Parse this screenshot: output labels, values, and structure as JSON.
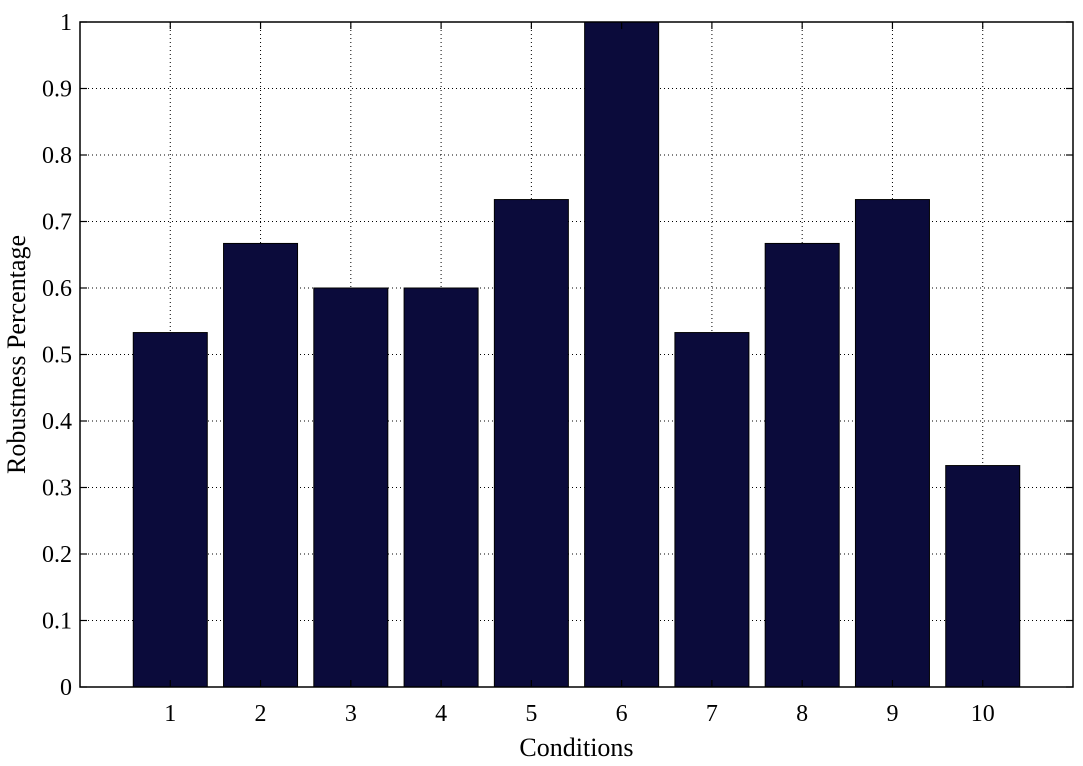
{
  "chart_data": {
    "type": "bar",
    "title": "",
    "xlabel": "Conditions",
    "ylabel": "Robustness Percentage",
    "categories": [
      "1",
      "2",
      "3",
      "4",
      "5",
      "6",
      "7",
      "8",
      "9",
      "10"
    ],
    "values": [
      0.533,
      0.667,
      0.6,
      0.6,
      0.733,
      1.0,
      0.533,
      0.667,
      0.733,
      0.333
    ],
    "ylim": [
      0,
      1
    ],
    "xlim": [
      0.0,
      11.0
    ],
    "yticks": [
      "0",
      "0.1",
      "0.2",
      "0.3",
      "0.4",
      "0.5",
      "0.6",
      "0.7",
      "0.8",
      "0.9",
      "1"
    ],
    "grid": true,
    "bar_color": "#0b0b3b"
  }
}
